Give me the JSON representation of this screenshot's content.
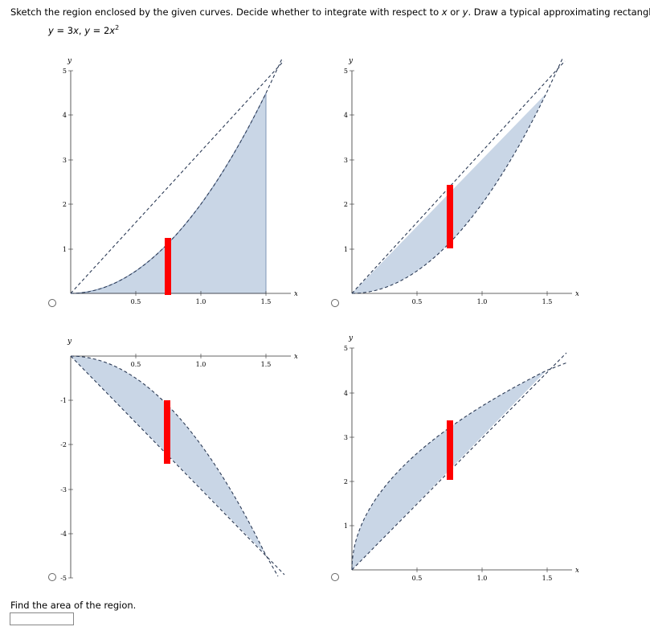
{
  "prompt": {
    "before_x": "Sketch the region enclosed by the given curves. Decide whether to integrate with respect to ",
    "x": "x",
    "or": " or ",
    "y": "y",
    "after": ". Draw a typical approximating rectangle."
  },
  "curves": {
    "c1_lhs": "y",
    "c1_eq": " = 3",
    "c1_var": "x",
    "sep": ", ",
    "c2_lhs": "y",
    "c2_eq": " = 2",
    "c2_var": "x",
    "c2_exp": "2"
  },
  "options": [
    {
      "id": "A",
      "xaxis_label": "x",
      "yaxis_label": "y",
      "x_ticks": [
        "0.5",
        "1.0",
        "1.5"
      ],
      "y_ticks": [
        "1",
        "2",
        "3",
        "4",
        "5"
      ]
    },
    {
      "id": "B",
      "xaxis_label": "x",
      "yaxis_label": "y",
      "x_ticks": [
        "0.5",
        "1.0",
        "1.5"
      ],
      "y_ticks": [
        "1",
        "2",
        "3",
        "4",
        "5"
      ]
    },
    {
      "id": "C",
      "xaxis_label": "x",
      "yaxis_label": "y",
      "x_ticks": [
        "0.5",
        "1.0",
        "1.5"
      ],
      "y_ticks": [
        "-1",
        "-2",
        "-3",
        "-4",
        "-5"
      ]
    },
    {
      "id": "D",
      "xaxis_label": "x",
      "yaxis_label": "y",
      "x_ticks": [
        "0.5",
        "1.0",
        "1.5"
      ],
      "y_ticks": [
        "1",
        "2",
        "3",
        "4",
        "5"
      ]
    }
  ],
  "colors": {
    "region_fill": "#c9d6e6",
    "rect": "#ff0000",
    "curve": "#2b3a55"
  },
  "area": {
    "label": "Find the area of the region.",
    "value": ""
  }
}
